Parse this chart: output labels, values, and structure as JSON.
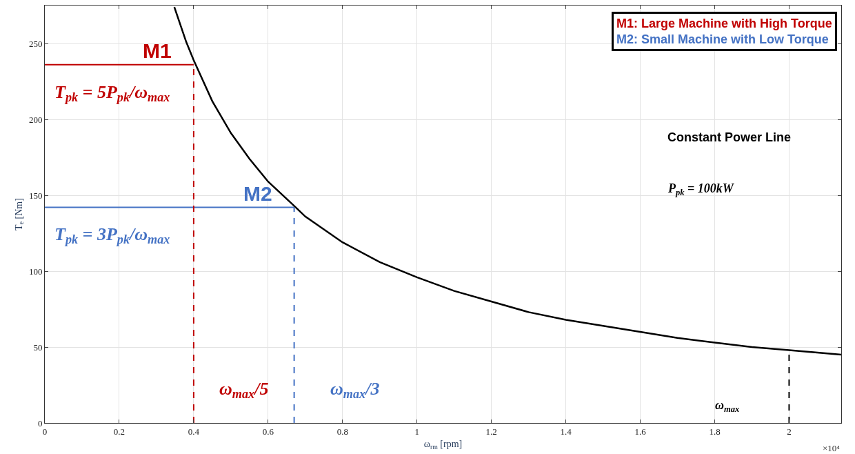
{
  "chart_data": {
    "type": "line",
    "xlabel": "ω$_{rm}$ [rpm]",
    "ylabel": "T$_{e}$ [Nm]",
    "series": [
      {
        "name": "M1",
        "color": "#c00000",
        "x": [
          0,
          0.4
        ],
        "values": [
          236,
          236
        ],
        "line_style": "solid"
      },
      {
        "name": "M2",
        "color": "#4472c4",
        "x": [
          0,
          0.67
        ],
        "values": [
          142,
          142
        ],
        "line_style": "solid"
      },
      {
        "color": "#000000",
        "x": [
          0.348,
          0.38,
          0.4,
          0.45,
          0.5,
          0.55,
          0.6,
          0.67,
          0.7,
          0.8,
          0.9,
          1.0,
          1.1,
          1.2,
          1.3,
          1.4,
          1.5,
          1.6,
          1.7,
          1.8,
          1.9,
          2.0,
          2.14
        ],
        "values": [
          274,
          251,
          239,
          212,
          191,
          174,
          159,
          143,
          136,
          119,
          106,
          96,
          87,
          80,
          73,
          68,
          64,
          60,
          56,
          53,
          50,
          48,
          45
        ],
        "line_style": "solid"
      },
      {
        "color": "#c00000",
        "x": [
          0.4,
          0.4
        ],
        "values": [
          0,
          236
        ],
        "line_style": "dashed"
      },
      {
        "color": "#4472c4",
        "x": [
          0.67,
          0.67
        ],
        "values": [
          0,
          142
        ],
        "line_style": "dashed"
      },
      {
        "color": "#000000",
        "x": [
          2.0,
          2.0
        ],
        "values": [
          0,
          48
        ],
        "line_style": "dashed"
      }
    ],
    "annotations": [
      "M1: Large Machine with High Torque",
      "M2: Small Machine with Low Torque",
      "T$_{pk}$ = 5P$_{pk}$/ω$_{max}$",
      "T$_{pk}$ = 3P$_{pk}$/ω$_{max}$",
      "ω$_{max}$/5",
      "ω$_{max}$/3",
      "Constant Power Line",
      "P$_{pk}$ = 100kW",
      "ω$_{max}$",
      "×10⁴"
    ],
    "xlim": [
      0,
      2.14
    ],
    "ylim": [
      0,
      275
    ],
    "xticks": [
      0,
      0.2,
      0.4,
      0.6,
      0.8,
      1,
      1.2,
      1.4,
      1.6,
      1.8,
      2
    ],
    "yticks": [
      0,
      50,
      100,
      150,
      200,
      250
    ],
    "grid": true,
    "legend": false,
    "marker": "none"
  }
}
